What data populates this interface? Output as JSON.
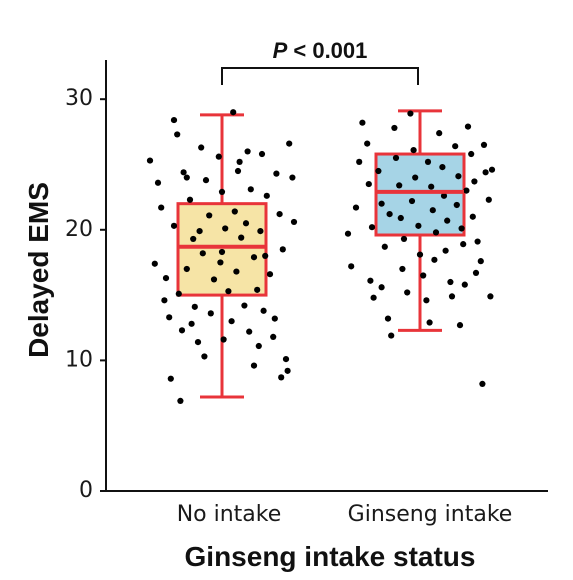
{
  "chart_data": {
    "type": "box",
    "xlabel": "Ginseng intake status",
    "ylabel": "Delayed EMS",
    "ylim": [
      0,
      33
    ],
    "yticks": [
      0,
      10,
      20,
      30
    ],
    "categories": [
      "No intake",
      "Ginseng intake"
    ],
    "annotation": {
      "p_symbol": "P",
      "text": " < 0.001"
    },
    "whisker_color": "#e8343a",
    "point_color": "#000000",
    "boxes": [
      {
        "name": "No intake",
        "fill": "#f6e4a6",
        "min": 7.2,
        "q1": 15.0,
        "median": 18.7,
        "q3": 22.0,
        "max": 28.8,
        "points": [
          [
            -0.45,
            25.3
          ],
          [
            -0.4,
            23.6
          ],
          [
            -0.38,
            21.7
          ],
          [
            -0.42,
            17.4
          ],
          [
            -0.35,
            16.3
          ],
          [
            -0.33,
            13.3
          ],
          [
            -0.3,
            28.4
          ],
          [
            -0.28,
            27.3
          ],
          [
            -0.3,
            20.3
          ],
          [
            -0.27,
            15.1
          ],
          [
            -0.25,
            12.3
          ],
          [
            -0.32,
            8.6
          ],
          [
            -0.26,
            6.9
          ],
          [
            -0.22,
            24.0
          ],
          [
            -0.2,
            22.3
          ],
          [
            -0.18,
            19.3
          ],
          [
            -0.22,
            17.0
          ],
          [
            -0.17,
            14.1
          ],
          [
            -0.19,
            12.8
          ],
          [
            -0.15,
            11.4
          ],
          [
            -0.13,
            26.3
          ],
          [
            -0.1,
            23.8
          ],
          [
            -0.08,
            21.1
          ],
          [
            -0.12,
            18.2
          ],
          [
            -0.05,
            16.2
          ],
          [
            -0.07,
            13.6
          ],
          [
            -0.02,
            25.6
          ],
          [
            0.0,
            22.9
          ],
          [
            0.02,
            20.1
          ],
          [
            -0.01,
            17.5
          ],
          [
            0.04,
            15.3
          ],
          [
            0.01,
            11.6
          ],
          [
            0.07,
            29.0
          ],
          [
            0.1,
            24.5
          ],
          [
            0.08,
            21.4
          ],
          [
            0.12,
            19.4
          ],
          [
            0.09,
            16.8
          ],
          [
            0.14,
            14.2
          ],
          [
            0.16,
            26.0
          ],
          [
            0.18,
            23.1
          ],
          [
            0.15,
            20.5
          ],
          [
            0.2,
            17.9
          ],
          [
            0.22,
            15.4
          ],
          [
            0.17,
            12.2
          ],
          [
            0.2,
            9.6
          ],
          [
            0.25,
            25.8
          ],
          [
            0.28,
            22.6
          ],
          [
            0.24,
            19.9
          ],
          [
            0.27,
            18.0
          ],
          [
            0.3,
            16.6
          ],
          [
            0.26,
            13.8
          ],
          [
            0.32,
            11.8
          ],
          [
            0.34,
            24.3
          ],
          [
            0.36,
            21.2
          ],
          [
            0.38,
            18.5
          ],
          [
            0.33,
            13.2
          ],
          [
            0.4,
            10.1
          ],
          [
            0.37,
            8.7
          ],
          [
            0.42,
            26.6
          ],
          [
            0.44,
            24.0
          ],
          [
            0.45,
            20.6
          ],
          [
            0.41,
            9.2
          ],
          [
            -0.36,
            14.6
          ],
          [
            -0.11,
            10.3
          ],
          [
            0.06,
            13.0
          ],
          [
            0.23,
            11.1
          ],
          [
            -0.24,
            24.4
          ],
          [
            0.0,
            18.3
          ],
          [
            0.11,
            25.2
          ],
          [
            -0.14,
            19.9
          ]
        ]
      },
      {
        "name": "Ginseng intake",
        "fill": "#a6d4e6",
        "min": 12.3,
        "q1": 19.6,
        "median": 22.9,
        "q3": 25.8,
        "max": 29.1,
        "points": [
          [
            -0.45,
            19.7
          ],
          [
            -0.43,
            17.2
          ],
          [
            -0.4,
            21.7
          ],
          [
            -0.38,
            25.2
          ],
          [
            -0.36,
            28.2
          ],
          [
            -0.33,
            26.6
          ],
          [
            -0.32,
            23.5
          ],
          [
            -0.3,
            20.2
          ],
          [
            -0.31,
            16.1
          ],
          [
            -0.29,
            14.8
          ],
          [
            -0.26,
            24.5
          ],
          [
            -0.24,
            22.0
          ],
          [
            -0.22,
            18.7
          ],
          [
            -0.24,
            15.6
          ],
          [
            -0.2,
            13.2
          ],
          [
            -0.18,
            11.9
          ],
          [
            -0.16,
            27.8
          ],
          [
            -0.15,
            25.5
          ],
          [
            -0.13,
            23.4
          ],
          [
            -0.12,
            20.9
          ],
          [
            -0.1,
            19.3
          ],
          [
            -0.11,
            17.0
          ],
          [
            -0.08,
            15.2
          ],
          [
            -0.06,
            28.9
          ],
          [
            -0.04,
            26.1
          ],
          [
            -0.03,
            24.0
          ],
          [
            -0.05,
            22.2
          ],
          [
            -0.01,
            20.3
          ],
          [
            0.0,
            18.1
          ],
          [
            0.02,
            16.5
          ],
          [
            0.04,
            14.6
          ],
          [
            0.05,
            25.2
          ],
          [
            0.07,
            23.3
          ],
          [
            0.08,
            21.5
          ],
          [
            0.1,
            19.8
          ],
          [
            0.09,
            17.7
          ],
          [
            0.12,
            27.4
          ],
          [
            0.14,
            24.8
          ],
          [
            0.15,
            22.6
          ],
          [
            0.17,
            20.7
          ],
          [
            0.16,
            18.4
          ],
          [
            0.19,
            16.0
          ],
          [
            0.2,
            14.9
          ],
          [
            0.22,
            26.4
          ],
          [
            0.24,
            24.1
          ],
          [
            0.23,
            21.9
          ],
          [
            0.26,
            20.1
          ],
          [
            0.27,
            18.9
          ],
          [
            0.28,
            15.8
          ],
          [
            0.25,
            12.7
          ],
          [
            0.3,
            27.9
          ],
          [
            0.32,
            25.8
          ],
          [
            0.34,
            23.7
          ],
          [
            0.33,
            21.0
          ],
          [
            0.36,
            19.1
          ],
          [
            0.38,
            17.6
          ],
          [
            0.4,
            26.5
          ],
          [
            0.41,
            24.4
          ],
          [
            0.43,
            22.3
          ],
          [
            0.45,
            24.6
          ],
          [
            0.44,
            14.9
          ],
          [
            0.39,
            8.2
          ],
          [
            -0.19,
            21.2
          ],
          [
            0.06,
            12.9
          ],
          [
            0.29,
            23.0
          ],
          [
            0.35,
            16.7
          ]
        ]
      }
    ]
  }
}
